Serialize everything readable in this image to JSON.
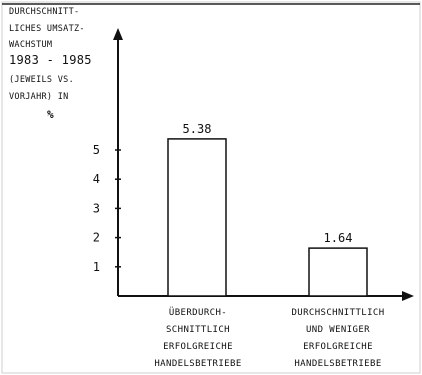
{
  "chart_data": {
    "type": "bar",
    "ylabel_lines": [
      "DURCHSCHNITT-",
      "LICHES UMSATZ-",
      "WACHSTUM",
      "1983 - 1985",
      "(JEWEILS VS.",
      "VORJAHR) IN",
      "%"
    ],
    "categories": [
      [
        "ÜBERDURCH-",
        "SCHNITTLICH",
        "ERFOLGREICHE",
        "HANDELSBETRIEBE"
      ],
      [
        "DURCHSCHNITTLICH",
        "UND WENIGER",
        "ERFOLGREICHE",
        "HANDELSBETRIEBE"
      ]
    ],
    "values": [
      5.38,
      1.64
    ],
    "value_labels": [
      "5.38",
      "1.64"
    ],
    "yticks": [
      1,
      2,
      3,
      4,
      5
    ],
    "ylim": [
      0,
      6.2
    ],
    "grid": false,
    "legend": "none"
  }
}
